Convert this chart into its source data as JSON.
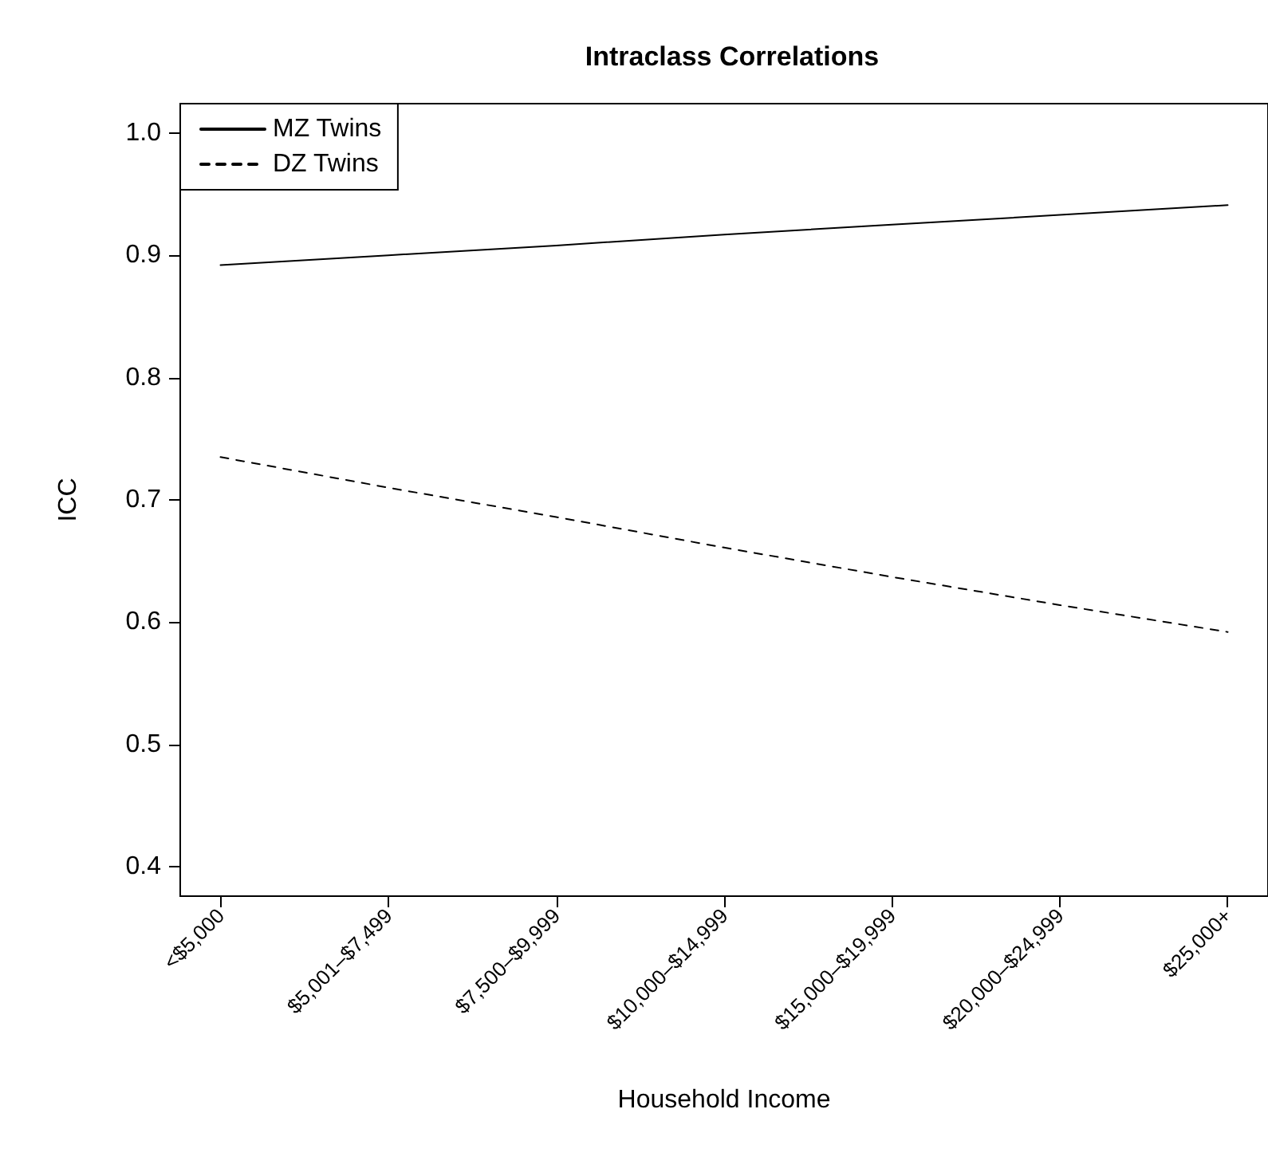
{
  "chart_data": {
    "type": "line",
    "title": "Intraclass Correlations",
    "xlabel": "Household Income",
    "ylabel": "ICC",
    "categories": [
      "<$5,000",
      "$5,001–$7,499",
      "$7,500–$9,999",
      "$10,000–$14,999",
      "$15,000–$19,999",
      "$20,000–$24,999",
      "$25,000+"
    ],
    "series": [
      {
        "name": "MZ Twins",
        "color": "#000000",
        "line_style": "solid",
        "values": [
          0.892,
          0.9,
          0.908,
          0.917,
          0.925,
          0.933,
          0.941
        ]
      },
      {
        "name": "DZ Twins",
        "color": "#000000",
        "line_style": "dashed",
        "values": [
          0.735,
          0.71,
          0.686,
          0.661,
          0.637,
          0.614,
          0.592
        ]
      }
    ],
    "ylim": [
      0.376,
      1.024
    ],
    "yticks": [
      0.4,
      0.5,
      0.6,
      0.7,
      0.8,
      0.9,
      {
        "value": 1,
        "label": "1.0"
      }
    ],
    "grid": false,
    "legend": "top left",
    "marker": "none"
  }
}
